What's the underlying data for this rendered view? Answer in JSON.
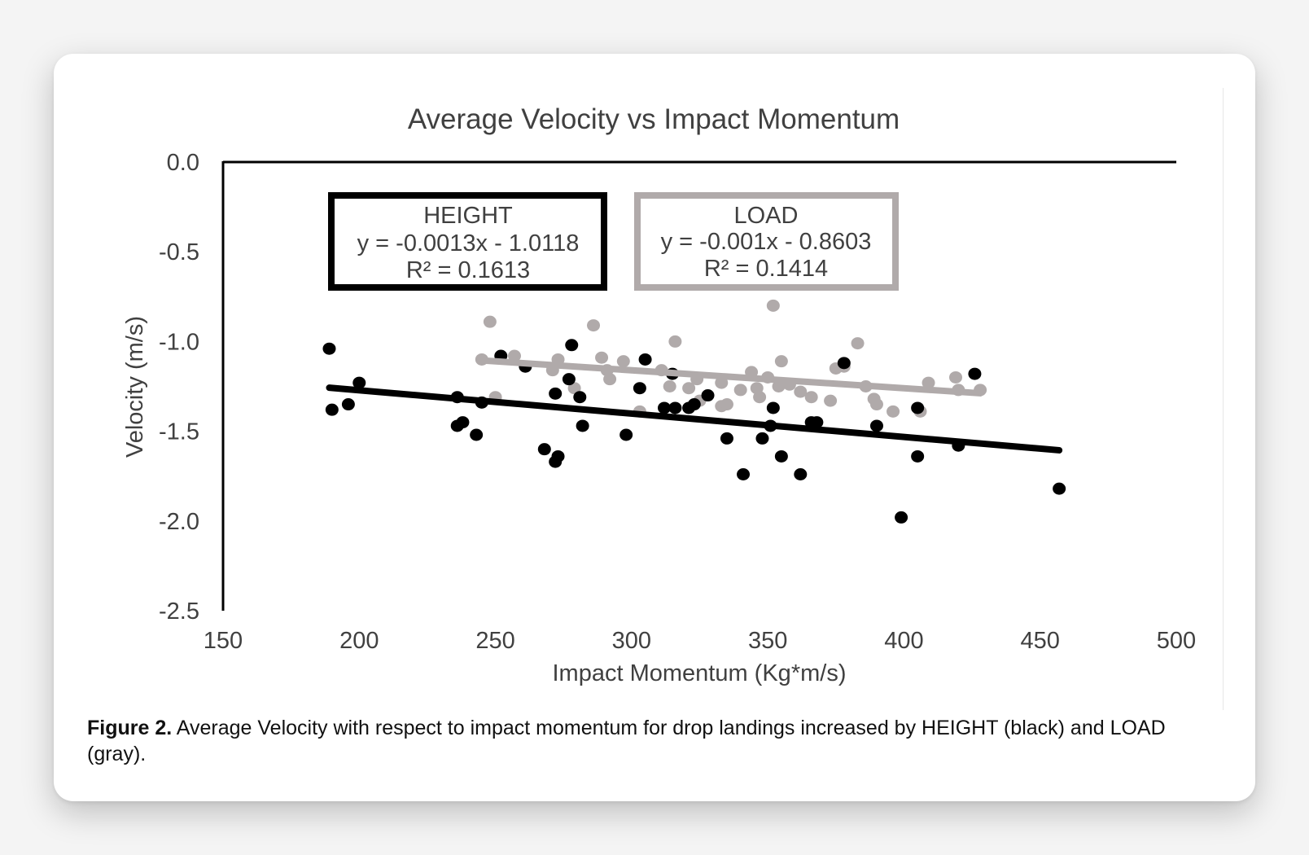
{
  "caption": {
    "label": "Figure 2.",
    "text": " Average Velocity with respect to impact momentum for drop landings increased by HEIGHT (black) and LOAD (gray)."
  },
  "colors": {
    "height": "#000000",
    "load": "#b0aaaa",
    "axis": "#000000",
    "text": "#404040"
  },
  "chart_data": {
    "type": "scatter",
    "title": "Average Velocity vs Impact Momentum",
    "xlabel": "Impact Momentum (Kg*m/s)",
    "ylabel": "Velocity (m/s)",
    "xlim": [
      150,
      500
    ],
    "ylim": [
      -2.5,
      0.0
    ],
    "xticks": [
      "150",
      "200",
      "250",
      "300",
      "350",
      "400",
      "450",
      "500"
    ],
    "yticks": [
      "0.0",
      "-0.5",
      "-1.0",
      "-1.5",
      "-2.0",
      "-2.5"
    ],
    "grid": false,
    "series": [
      {
        "name": "HEIGHT",
        "color": "#000000",
        "equation": "y = -0.0013x - 1.0118",
        "r2": "R² = 0.1613",
        "trendline": {
          "slope": -0.0013,
          "intercept": -1.0118,
          "x_range": [
            189,
            457
          ]
        },
        "points": [
          [
            189,
            -1.04
          ],
          [
            190,
            -1.38
          ],
          [
            196,
            -1.35
          ],
          [
            200,
            -1.23
          ],
          [
            236,
            -1.31
          ],
          [
            236,
            -1.47
          ],
          [
            238,
            -1.45
          ],
          [
            243,
            -1.52
          ],
          [
            245,
            -1.34
          ],
          [
            252,
            -1.08
          ],
          [
            261,
            -1.14
          ],
          [
            268,
            -1.6
          ],
          [
            272,
            -1.67
          ],
          [
            272,
            -1.29
          ],
          [
            273,
            -1.64
          ],
          [
            277,
            -1.21
          ],
          [
            278,
            -1.02
          ],
          [
            281,
            -1.31
          ],
          [
            282,
            -1.47
          ],
          [
            298,
            -1.52
          ],
          [
            303,
            -1.26
          ],
          [
            305,
            -1.1
          ],
          [
            312,
            -1.37
          ],
          [
            315,
            -1.18
          ],
          [
            316,
            -1.37
          ],
          [
            321,
            -1.37
          ],
          [
            323,
            -1.35
          ],
          [
            328,
            -1.3
          ],
          [
            335,
            -1.54
          ],
          [
            341,
            -1.74
          ],
          [
            348,
            -1.54
          ],
          [
            351,
            -1.47
          ],
          [
            352,
            -1.37
          ],
          [
            355,
            -1.64
          ],
          [
            362,
            -1.74
          ],
          [
            366,
            -1.45
          ],
          [
            368,
            -1.45
          ],
          [
            378,
            -1.12
          ],
          [
            390,
            -1.47
          ],
          [
            399,
            -1.98
          ],
          [
            405,
            -1.37
          ],
          [
            405,
            -1.64
          ],
          [
            420,
            -1.58
          ],
          [
            426,
            -1.18
          ],
          [
            457,
            -1.82
          ]
        ]
      },
      {
        "name": "LOAD",
        "color": "#b0aaaa",
        "equation": "y = -0.001x - 0.8603",
        "r2": "R² = 0.1414",
        "trendline": {
          "slope": -0.001,
          "intercept": -0.8603,
          "x_range": [
            245,
            428
          ]
        },
        "points": [
          [
            245,
            -1.1
          ],
          [
            248,
            -0.89
          ],
          [
            250,
            -1.31
          ],
          [
            257,
            -1.08
          ],
          [
            271,
            -1.16
          ],
          [
            273,
            -1.1
          ],
          [
            279,
            -1.26
          ],
          [
            286,
            -0.91
          ],
          [
            289,
            -1.09
          ],
          [
            291,
            -1.16
          ],
          [
            292,
            -1.21
          ],
          [
            297,
            -1.11
          ],
          [
            303,
            -1.39
          ],
          [
            311,
            -1.16
          ],
          [
            314,
            -1.25
          ],
          [
            316,
            -1.0
          ],
          [
            321,
            -1.26
          ],
          [
            324,
            -1.21
          ],
          [
            325,
            -1.33
          ],
          [
            333,
            -1.23
          ],
          [
            333,
            -1.36
          ],
          [
            335,
            -1.35
          ],
          [
            340,
            -1.27
          ],
          [
            344,
            -1.17
          ],
          [
            346,
            -1.26
          ],
          [
            347,
            -1.31
          ],
          [
            350,
            -1.2
          ],
          [
            352,
            -0.8
          ],
          [
            354,
            -1.25
          ],
          [
            355,
            -1.11
          ],
          [
            358,
            -1.24
          ],
          [
            362,
            -1.28
          ],
          [
            366,
            -1.31
          ],
          [
            373,
            -1.33
          ],
          [
            375,
            -1.15
          ],
          [
            378,
            -1.14
          ],
          [
            383,
            -1.01
          ],
          [
            386,
            -1.25
          ],
          [
            389,
            -1.32
          ],
          [
            390,
            -1.35
          ],
          [
            396,
            -1.39
          ],
          [
            406,
            -1.39
          ],
          [
            409,
            -1.23
          ],
          [
            419,
            -1.2
          ],
          [
            420,
            -1.27
          ],
          [
            428,
            -1.27
          ]
        ]
      }
    ]
  }
}
